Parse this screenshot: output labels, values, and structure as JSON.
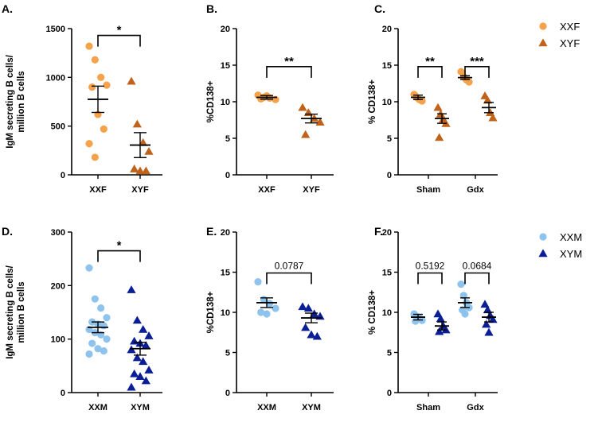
{
  "colors": {
    "xx_female": "#f5a24a",
    "xy_female": "#c0621a",
    "xx_male": "#8ec3ee",
    "xy_male": "#0a1e96",
    "axis": "#000000"
  },
  "legends": [
    {
      "entries": [
        {
          "label": "XXF",
          "marker": "circle",
          "color": "#f5a24a"
        },
        {
          "label": "XYF",
          "marker": "triangle",
          "color": "#c0621a"
        }
      ]
    },
    {
      "entries": [
        {
          "label": "XXM",
          "marker": "circle",
          "color": "#8ec3ee"
        },
        {
          "label": "XYM",
          "marker": "triangle",
          "color": "#0a1e96"
        }
      ]
    }
  ],
  "chart_data": [
    {
      "panel": "A.",
      "type": "scatter",
      "ylabel": "IgM secreting B cells/\nmillion B cells",
      "ylim": [
        0,
        1500
      ],
      "yticks": [
        0,
        500,
        1000,
        1500
      ],
      "categories": [
        "XXF",
        "XYF"
      ],
      "groups": [
        {
          "name": "XXF",
          "marker": "circle",
          "color": "#f5a24a",
          "values": [
            1320,
            1180,
            1000,
            920,
            900,
            620,
            470,
            320,
            180
          ],
          "mean": 775,
          "sem": 135
        },
        {
          "name": "XYF",
          "marker": "triangle",
          "color": "#c0621a",
          "values": [
            960,
            520,
            330,
            240,
            60,
            40,
            40
          ],
          "mean": 305,
          "sem": 128
        }
      ],
      "comparisons": [
        {
          "label": "*",
          "from": 0,
          "to": 1,
          "y": 1430
        }
      ]
    },
    {
      "panel": "B.",
      "type": "scatter",
      "ylabel": "%CD138+",
      "ylim": [
        0,
        20
      ],
      "yticks": [
        0,
        5,
        10,
        15,
        20
      ],
      "categories": [
        "XXF",
        "XYF"
      ],
      "groups": [
        {
          "name": "XXF",
          "marker": "circle",
          "color": "#f5a24a",
          "values": [
            10.9,
            10.6,
            10.5,
            10.3,
            10.4,
            10.8
          ],
          "mean": 10.6,
          "sem": 0.25
        },
        {
          "name": "XYF",
          "marker": "triangle",
          "color": "#c0621a",
          "values": [
            9.2,
            8.5,
            7.7,
            7.2,
            5.5
          ],
          "mean": 7.7,
          "sem": 0.6
        }
      ],
      "comparisons": [
        {
          "label": "**",
          "from": 0,
          "to": 1,
          "y": 14.8
        }
      ]
    },
    {
      "panel": "C.",
      "type": "scatter",
      "ylabel": "% CD138+",
      "ylim": [
        0,
        20
      ],
      "yticks": [
        0,
        5,
        10,
        15,
        20
      ],
      "categories": [
        "Sham",
        "Gdx"
      ],
      "groups": [
        {
          "name": "XXF",
          "category": "Sham",
          "marker": "circle",
          "color": "#f5a24a",
          "values": [
            11.0,
            10.6,
            10.3,
            10.1,
            10.8
          ],
          "mean": 10.6,
          "sem": 0.3
        },
        {
          "name": "XYF",
          "category": "Sham",
          "marker": "triangle",
          "color": "#c0621a",
          "values": [
            9.2,
            8.3,
            7.6,
            7.0,
            5.1
          ],
          "mean": 7.7,
          "sem": 0.65
        },
        {
          "name": "XXF",
          "category": "Gdx",
          "marker": "circle",
          "color": "#f5a24a",
          "values": [
            14.1,
            13.4,
            13.0,
            12.7
          ],
          "mean": 13.3,
          "sem": 0.25
        },
        {
          "name": "XYF",
          "category": "Gdx",
          "marker": "triangle",
          "color": "#c0621a",
          "values": [
            10.8,
            10.2,
            8.5,
            7.8
          ],
          "mean": 9.2,
          "sem": 0.7
        }
      ],
      "comparisons": [
        {
          "label": "**",
          "from": 0,
          "to": 1,
          "y": 14.8
        },
        {
          "label": "***",
          "from": 2,
          "to": 3,
          "y": 14.8
        }
      ]
    },
    {
      "panel": "D.",
      "type": "scatter",
      "ylabel": "IgM secreting B cells/\nmillion B cells",
      "ylim": [
        0,
        300
      ],
      "yticks": [
        0,
        100,
        200,
        300
      ],
      "categories": [
        "XXM",
        "XYM"
      ],
      "groups": [
        {
          "name": "XXM",
          "marker": "circle",
          "color": "#8ec3ee",
          "values": [
            233,
            175,
            158,
            140,
            132,
            128,
            125,
            118,
            112,
            108,
            100,
            92,
            82,
            78,
            72
          ],
          "mean": 122,
          "sem": 10
        },
        {
          "name": "XYM",
          "marker": "triangle",
          "color": "#0a1e96",
          "values": [
            192,
            135,
            118,
            106,
            96,
            92,
            88,
            80,
            65,
            58,
            42,
            35,
            30,
            22,
            10
          ],
          "mean": 82,
          "sem": 12
        }
      ],
      "comparisons": [
        {
          "label": "*",
          "from": 0,
          "to": 1,
          "y": 265
        }
      ]
    },
    {
      "panel": "E.",
      "type": "scatter",
      "ylabel": "%CD138+",
      "ylim": [
        0,
        20
      ],
      "yticks": [
        0,
        5,
        10,
        15,
        20
      ],
      "categories": [
        "XXM",
        "XYM"
      ],
      "groups": [
        {
          "name": "XXM",
          "marker": "circle",
          "color": "#8ec3ee",
          "values": [
            13.8,
            11.6,
            11.1,
            10.5,
            10.0,
            9.8
          ],
          "mean": 11.2,
          "sem": 0.6
        },
        {
          "name": "XYM",
          "marker": "triangle",
          "color": "#0a1e96",
          "values": [
            10.7,
            10.5,
            9.8,
            9.5,
            8.1,
            7.2,
            7.0
          ],
          "mean": 9.3,
          "sem": 0.6
        }
      ],
      "comparisons": [
        {
          "label": "0.0787",
          "from": 0,
          "to": 1,
          "y": 14.9
        }
      ]
    },
    {
      "panel": "F.",
      "type": "scatter",
      "ylabel": "% CD138+",
      "ylim": [
        0,
        20
      ],
      "yticks": [
        0,
        5,
        10,
        15,
        20
      ],
      "categories": [
        "Sham",
        "Gdx"
      ],
      "groups": [
        {
          "name": "XXM",
          "category": "Sham",
          "marker": "circle",
          "color": "#8ec3ee",
          "values": [
            9.8,
            9.5,
            9.3,
            9.0,
            8.9
          ],
          "mean": 9.4,
          "sem": 0.35
        },
        {
          "name": "XYM",
          "category": "Sham",
          "marker": "triangle",
          "color": "#0a1e96",
          "values": [
            9.8,
            9.2,
            8.3,
            7.8,
            7.6
          ],
          "mean": 8.3,
          "sem": 0.5
        },
        {
          "name": "XXM",
          "category": "Gdx",
          "marker": "circle",
          "color": "#8ec3ee",
          "values": [
            13.5,
            12.1,
            11.2,
            10.6,
            10.3,
            9.8
          ],
          "mean": 11.2,
          "sem": 0.6
        },
        {
          "name": "XYM",
          "category": "Gdx",
          "marker": "triangle",
          "color": "#0a1e96",
          "values": [
            11.0,
            10.3,
            9.6,
            9.1,
            8.5,
            7.5
          ],
          "mean": 9.4,
          "sem": 0.6
        }
      ],
      "comparisons": [
        {
          "label": "0.5192",
          "from": 0,
          "to": 1,
          "y": 14.9
        },
        {
          "label": "0.0684",
          "from": 2,
          "to": 3,
          "y": 14.9
        }
      ]
    }
  ]
}
